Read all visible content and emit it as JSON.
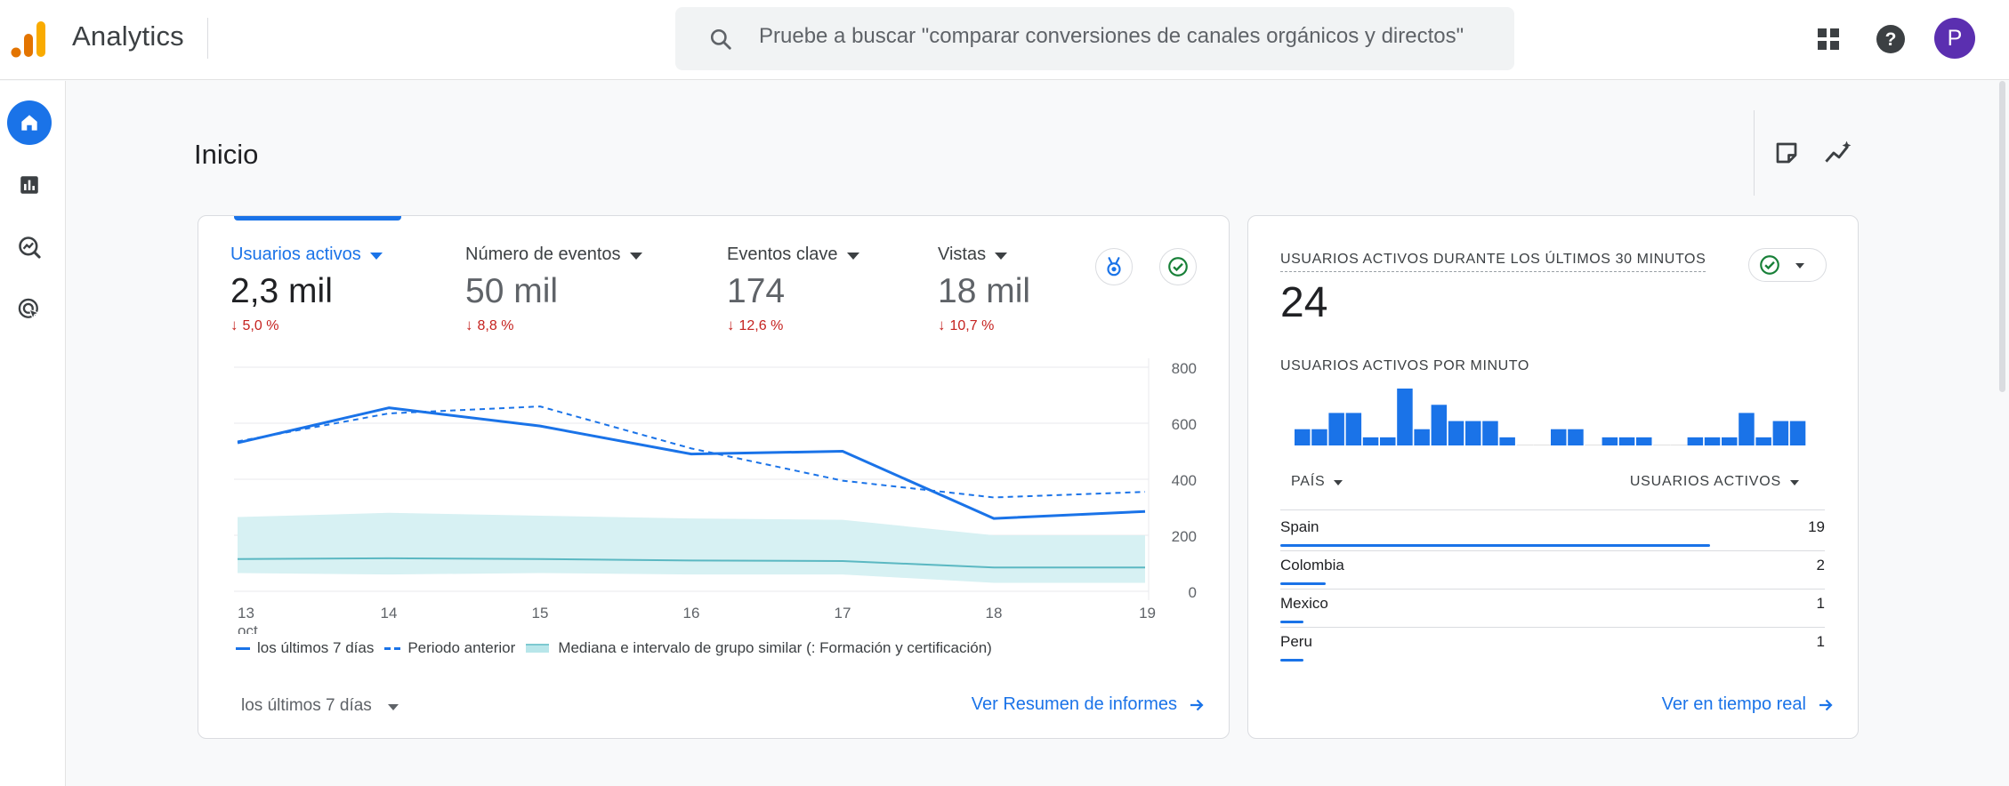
{
  "app": {
    "name": "Analytics",
    "avatar_letter": "P"
  },
  "search": {
    "placeholder": "Pruebe a buscar \"comparar conversiones de canales orgánicos y directos\""
  },
  "page": {
    "title": "Inicio"
  },
  "metrics": [
    {
      "label": "Usuarios activos",
      "value": "2,3 mil",
      "delta": "5,0 %",
      "active": true
    },
    {
      "label": "Número de eventos",
      "value": "50 mil",
      "delta": "8,8 %",
      "active": false
    },
    {
      "label": "Eventos clave",
      "value": "174",
      "delta": "12,6 %",
      "active": false
    },
    {
      "label": "Vistas",
      "value": "18 mil",
      "delta": "10,7 %",
      "active": false
    }
  ],
  "chart_data": {
    "type": "line",
    "x": [
      "13",
      "14",
      "15",
      "16",
      "17",
      "18",
      "19"
    ],
    "x_first_sublabel": "oct",
    "y_ticks": [
      "800",
      "600",
      "400",
      "200",
      "0"
    ],
    "ylim": [
      0,
      800
    ],
    "series": [
      {
        "name": "los últimos 7 días",
        "style": "solid",
        "values": [
          530,
          655,
          590,
          490,
          500,
          260,
          285
        ]
      },
      {
        "name": "Periodo anterior",
        "style": "dashed",
        "values": [
          535,
          635,
          660,
          510,
          395,
          335,
          355
        ]
      },
      {
        "name": "Mediana e intervalo de grupo similar (: Formación y certificación)",
        "style": "band",
        "values": [
          115,
          118,
          115,
          110,
          108,
          85,
          85
        ],
        "upper": [
          265,
          280,
          270,
          260,
          255,
          200,
          200
        ],
        "lower": [
          65,
          60,
          65,
          60,
          60,
          30,
          30
        ]
      }
    ],
    "colors": {
      "current": "#1a73e8",
      "previous": "#1a73e8",
      "median": "#5bb8c2",
      "band": "#d7f1f3"
    }
  },
  "legend": {
    "current": "los últimos 7 días",
    "previous": "Periodo anterior",
    "median": "Mediana e intervalo de grupo similar (: Formación y certificación)"
  },
  "main_footer": {
    "range": "los últimos 7 días",
    "link": "Ver Resumen de informes"
  },
  "realtime": {
    "title": "USUARIOS ACTIVOS DURANTE LOS ÚLTIMOS 30 MINUTOS",
    "value": "24",
    "per_minute_label": "USUARIOS ACTIVOS POR MINUTO",
    "per_minute": [
      1,
      1,
      2,
      2,
      0.5,
      0.5,
      3.5,
      1,
      2.5,
      1.5,
      1.5,
      1.5,
      0.5,
      0,
      0,
      1,
      1,
      0,
      0.5,
      0.5,
      0.5,
      0,
      0,
      0.5,
      0.5,
      0.5,
      2,
      0.5,
      1.5,
      1.5
    ],
    "col_country": "PAÍS",
    "col_users": "USUARIOS ACTIVOS",
    "rows": [
      {
        "country": "Spain",
        "users": "19",
        "share": 0.79
      },
      {
        "country": "Colombia",
        "users": "2",
        "share": 0.083
      },
      {
        "country": "Mexico",
        "users": "1",
        "share": 0.042
      },
      {
        "country": "Peru",
        "users": "1",
        "share": 0.042
      }
    ],
    "link": "Ver en tiempo real"
  }
}
